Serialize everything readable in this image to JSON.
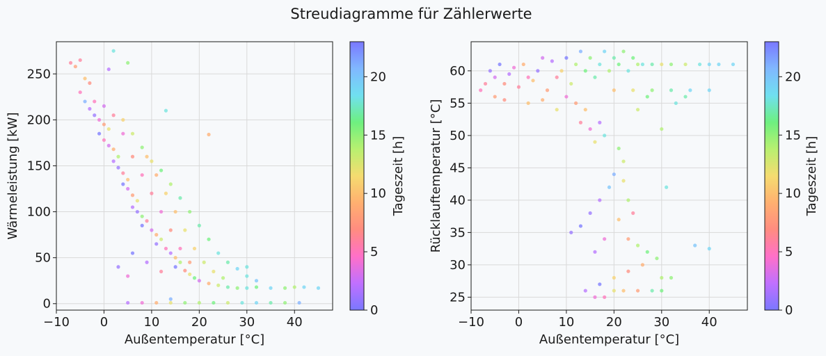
{
  "figure": {
    "suptitle": "Streudiagramme für Zählerwerte"
  },
  "colorbar": {
    "label": "Tageszeit [h]",
    "range": [
      0,
      23
    ],
    "ticks": [
      0,
      5,
      10,
      15,
      20
    ],
    "colormap": [
      "#7a78ff",
      "#c070ff",
      "#ff70c8",
      "#ff8c80",
      "#ffb070",
      "#f5dc70",
      "#b8f070",
      "#6ef080",
      "#70e0f0",
      "#80b8ff",
      "#7a78ff"
    ]
  },
  "chart_data": [
    {
      "type": "scatter",
      "xlabel": "Außentemperatur [°C]",
      "ylabel": "Wärmeleistung [kW]",
      "xlim": [
        -10,
        48
      ],
      "ylim": [
        -7,
        285
      ],
      "xticks": [
        -10,
        0,
        10,
        20,
        30,
        40
      ],
      "yticks": [
        0,
        50,
        100,
        150,
        200,
        250
      ],
      "grid": true,
      "color_by": "Tageszeit [h]",
      "points": [
        [
          -7,
          262,
          6
        ],
        [
          -6,
          258,
          8
        ],
        [
          -5,
          265,
          6
        ],
        [
          -4,
          245,
          10
        ],
        [
          -3,
          240,
          7
        ],
        [
          -5,
          230,
          5
        ],
        [
          -4,
          220,
          21
        ],
        [
          -3,
          212,
          2
        ],
        [
          -2,
          205,
          1
        ],
        [
          -1,
          200,
          4
        ],
        [
          0,
          195,
          8
        ],
        [
          1,
          190,
          12
        ],
        [
          -1,
          185,
          0
        ],
        [
          0,
          178,
          5
        ],
        [
          1,
          172,
          3
        ],
        [
          2,
          168,
          9
        ],
        [
          3,
          160,
          14
        ],
        [
          2,
          155,
          2
        ],
        [
          3,
          148,
          1
        ],
        [
          4,
          142,
          6
        ],
        [
          5,
          135,
          10
        ],
        [
          4,
          130,
          0
        ],
        [
          5,
          125,
          3
        ],
        [
          6,
          118,
          8
        ],
        [
          7,
          112,
          12
        ],
        [
          6,
          105,
          2
        ],
        [
          7,
          100,
          1
        ],
        [
          8,
          95,
          15
        ],
        [
          9,
          90,
          6
        ],
        [
          8,
          85,
          0
        ],
        [
          10,
          80,
          3
        ],
        [
          11,
          75,
          9
        ],
        [
          12,
          70,
          13
        ],
        [
          11,
          65,
          1
        ],
        [
          13,
          60,
          5
        ],
        [
          14,
          55,
          2
        ],
        [
          15,
          50,
          10
        ],
        [
          16,
          45,
          14
        ],
        [
          15,
          40,
          0
        ],
        [
          17,
          36,
          7
        ],
        [
          18,
          32,
          12
        ],
        [
          19,
          28,
          16
        ],
        [
          20,
          25,
          3
        ],
        [
          22,
          22,
          9
        ],
        [
          24,
          20,
          13
        ],
        [
          26,
          18,
          17
        ],
        [
          28,
          17,
          15
        ],
        [
          30,
          17,
          18
        ],
        [
          32,
          18,
          16
        ],
        [
          35,
          17,
          19
        ],
        [
          38,
          17,
          15
        ],
        [
          40,
          18,
          14
        ],
        [
          42,
          18,
          19
        ],
        [
          45,
          17,
          19
        ],
        [
          2,
          275,
          18
        ],
        [
          5,
          262,
          15
        ],
        [
          1,
          255,
          2
        ],
        [
          22,
          184,
          9
        ],
        [
          13,
          210,
          18
        ],
        [
          -2,
          220,
          5
        ],
        [
          4,
          200,
          11
        ],
        [
          6,
          185,
          13
        ],
        [
          8,
          170,
          15
        ],
        [
          10,
          155,
          12
        ],
        [
          12,
          145,
          16
        ],
        [
          14,
          130,
          14
        ],
        [
          16,
          115,
          17
        ],
        [
          18,
          100,
          15
        ],
        [
          20,
          85,
          17
        ],
        [
          22,
          70,
          16
        ],
        [
          24,
          55,
          18
        ],
        [
          26,
          45,
          17
        ],
        [
          28,
          38,
          19
        ],
        [
          30,
          30,
          18
        ],
        [
          32,
          25,
          20
        ],
        [
          9,
          160,
          10
        ],
        [
          11,
          140,
          9
        ],
        [
          13,
          120,
          11
        ],
        [
          15,
          100,
          10
        ],
        [
          17,
          80,
          12
        ],
        [
          19,
          60,
          11
        ],
        [
          21,
          45,
          13
        ],
        [
          23,
          35,
          12
        ],
        [
          25,
          28,
          14
        ],
        [
          0,
          215,
          3
        ],
        [
          2,
          205,
          6
        ],
        [
          4,
          185,
          4
        ],
        [
          6,
          160,
          7
        ],
        [
          8,
          140,
          5
        ],
        [
          10,
          120,
          6
        ],
        [
          12,
          100,
          4
        ],
        [
          14,
          80,
          7
        ],
        [
          16,
          60,
          5
        ],
        [
          18,
          45,
          8
        ],
        [
          5,
          1,
          2
        ],
        [
          8,
          1,
          4
        ],
        [
          11,
          1,
          9
        ],
        [
          14,
          1,
          12
        ],
        [
          17,
          1,
          15
        ],
        [
          20,
          1,
          14
        ],
        [
          23,
          1,
          16
        ],
        [
          26,
          1,
          13
        ],
        [
          29,
          1,
          18
        ],
        [
          32,
          1,
          19
        ],
        [
          35,
          1,
          17
        ],
        [
          38,
          1,
          15
        ],
        [
          41,
          1,
          21
        ],
        [
          14,
          5,
          21
        ],
        [
          3,
          40,
          1
        ],
        [
          5,
          30,
          4
        ],
        [
          6,
          55,
          0
        ],
        [
          9,
          45,
          2
        ],
        [
          12,
          35,
          6
        ],
        [
          30,
          40,
          18
        ]
      ]
    },
    {
      "type": "scatter",
      "xlabel": "Außentemperatur [°C]",
      "ylabel": "Rücklauftemperatur [°C]",
      "xlim": [
        -10,
        48
      ],
      "ylim": [
        23,
        64.5
      ],
      "xticks": [
        -10,
        0,
        10,
        20,
        30,
        40
      ],
      "yticks": [
        25,
        30,
        35,
        40,
        45,
        50,
        55,
        60
      ],
      "grid": true,
      "color_by": "Tageszeit [h]",
      "points": [
        [
          -8,
          57,
          5
        ],
        [
          -7,
          58,
          6
        ],
        [
          -6,
          60,
          1
        ],
        [
          -5,
          59,
          3
        ],
        [
          -4,
          61,
          0
        ],
        [
          -3,
          58,
          7
        ],
        [
          -2,
          59.5,
          2
        ],
        [
          -1,
          60.5,
          4
        ],
        [
          0,
          57.5,
          6
        ],
        [
          1,
          61,
          9
        ],
        [
          2,
          59,
          5
        ],
        [
          3,
          58.5,
          10
        ],
        [
          4,
          60,
          1
        ],
        [
          5,
          62,
          3
        ],
        [
          6,
          57,
          8
        ],
        [
          7,
          61.5,
          2
        ],
        [
          8,
          59,
          6
        ],
        [
          9,
          60,
          11
        ],
        [
          10,
          62,
          0
        ],
        [
          11,
          58,
          13
        ],
        [
          12,
          61,
          14
        ],
        [
          13,
          63,
          21
        ],
        [
          14,
          60,
          16
        ],
        [
          15,
          62,
          15
        ],
        [
          16,
          59,
          17
        ],
        [
          17,
          61,
          18
        ],
        [
          18,
          63,
          19
        ],
        [
          19,
          60,
          14
        ],
        [
          20,
          62,
          17
        ],
        [
          21,
          61,
          16
        ],
        [
          22,
          63,
          15
        ],
        [
          23,
          60,
          18
        ],
        [
          24,
          62,
          16
        ],
        [
          25,
          61,
          14
        ],
        [
          26,
          61,
          18
        ],
        [
          28,
          61,
          17
        ],
        [
          30,
          61,
          12
        ],
        [
          32,
          61,
          15
        ],
        [
          35,
          61,
          13
        ],
        [
          38,
          61,
          18
        ],
        [
          40,
          61,
          19
        ],
        [
          42,
          61,
          19
        ],
        [
          45,
          61,
          19
        ],
        [
          20,
          57,
          10
        ],
        [
          24,
          57,
          12
        ],
        [
          28,
          57,
          15
        ],
        [
          32,
          57,
          17
        ],
        [
          36,
          57,
          19
        ],
        [
          40,
          57,
          19
        ],
        [
          10,
          56,
          4
        ],
        [
          12,
          55,
          8
        ],
        [
          14,
          54,
          10
        ],
        [
          13,
          52,
          6
        ],
        [
          15,
          51,
          4
        ],
        [
          17,
          52,
          2
        ],
        [
          16,
          49,
          12
        ],
        [
          18,
          50,
          18
        ],
        [
          21,
          48,
          15
        ],
        [
          22,
          46,
          13
        ],
        [
          20,
          44,
          21
        ],
        [
          19,
          42,
          20
        ],
        [
          17,
          40,
          2
        ],
        [
          15,
          38,
          1
        ],
        [
          13,
          36,
          0
        ],
        [
          11,
          35,
          1
        ],
        [
          22,
          43,
          12
        ],
        [
          23,
          40,
          14
        ],
        [
          21,
          37,
          10
        ],
        [
          23,
          34,
          8
        ],
        [
          25,
          33,
          14
        ],
        [
          27,
          32,
          16
        ],
        [
          29,
          31,
          15
        ],
        [
          26,
          30,
          9
        ],
        [
          23,
          29,
          7
        ],
        [
          20,
          28,
          11
        ],
        [
          30,
          28,
          14
        ],
        [
          32,
          28,
          15
        ],
        [
          17,
          27,
          0
        ],
        [
          14,
          26,
          2
        ],
        [
          16,
          25,
          4
        ],
        [
          18,
          25,
          5
        ],
        [
          20,
          26,
          12
        ],
        [
          22,
          26,
          10
        ],
        [
          25,
          26,
          8
        ],
        [
          28,
          26,
          17
        ],
        [
          30,
          26,
          16
        ],
        [
          31,
          42,
          18
        ],
        [
          37,
          33,
          20
        ],
        [
          40,
          32.5,
          19
        ],
        [
          30,
          51,
          14
        ],
        [
          25,
          54,
          13
        ],
        [
          27,
          56,
          16
        ],
        [
          33,
          55,
          18
        ],
        [
          35,
          56,
          17
        ],
        [
          -5,
          56,
          8
        ],
        [
          -3,
          55.5,
          7
        ],
        [
          2,
          55,
          10
        ],
        [
          5,
          55.5,
          9
        ],
        [
          8,
          54,
          12
        ],
        [
          16,
          32,
          2
        ],
        [
          18,
          34,
          4
        ],
        [
          24,
          38,
          6
        ]
      ]
    }
  ]
}
